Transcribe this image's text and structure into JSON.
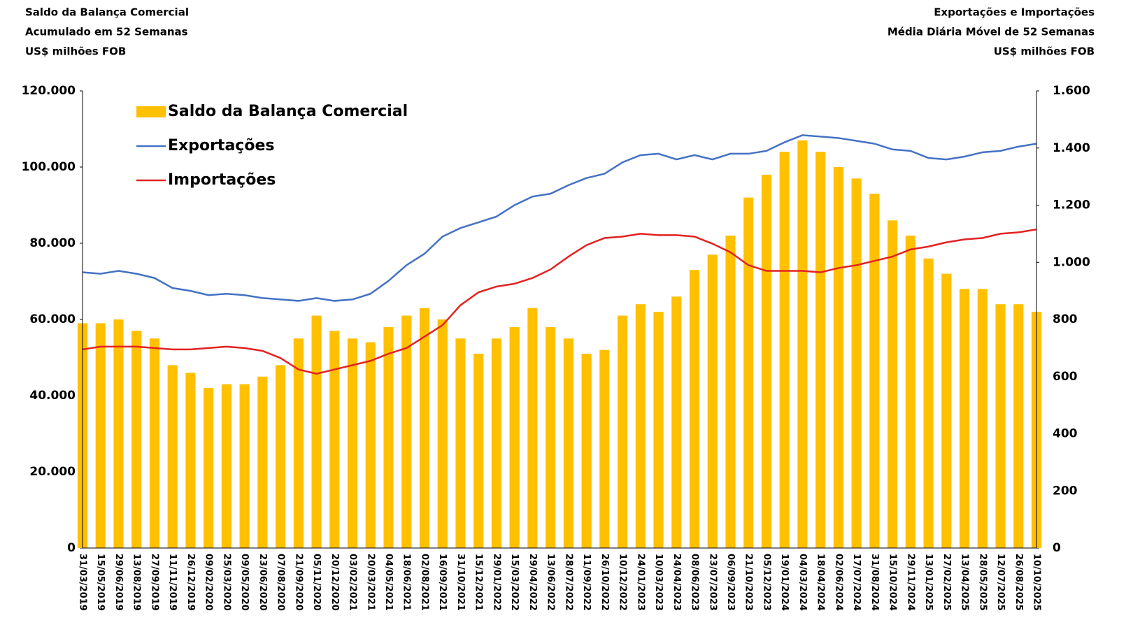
{
  "chart_data": {
    "type": "bar_line",
    "title_left": [
      "Saldo da Balança Comercial",
      "Acumulado em 52 Semanas",
      "US$ milhões FOB"
    ],
    "title_right": [
      "Exportações e Importações",
      "Média Diária Móvel de 52 Semanas",
      "US$ milhões FOB"
    ],
    "categories": [
      "31/03/2019",
      "15/05/2019",
      "29/06/2019",
      "13/08/2019",
      "27/09/2019",
      "11/11/2019",
      "26/12/2019",
      "09/02/2020",
      "25/03/2020",
      "09/05/2020",
      "23/06/2020",
      "07/08/2020",
      "21/09/2020",
      "05/11/2020",
      "20/12/2020",
      "03/02/2021",
      "20/03/2021",
      "04/05/2021",
      "18/06/2021",
      "02/08/2021",
      "16/09/2021",
      "31/10/2021",
      "15/12/2021",
      "29/01/2022",
      "15/03/2022",
      "29/04/2022",
      "13/06/2022",
      "28/07/2022",
      "11/09/2022",
      "26/10/2022",
      "10/12/2022",
      "24/01/2023",
      "10/03/2023",
      "24/04/2023",
      "08/06/2023",
      "23/07/2023",
      "06/09/2023",
      "21/10/2023",
      "05/12/2023",
      "19/01/2024",
      "04/03/2024",
      "18/04/2024",
      "02/06/2024",
      "17/07/2024",
      "31/08/2024",
      "15/10/2024",
      "29/11/2024",
      "13/01/2025",
      "27/02/2025",
      "13/04/2025",
      "28/05/2025",
      "12/07/2025",
      "26/08/2025",
      "10/10/2025"
    ],
    "series": [
      {
        "name": "Saldo da Balança Comercial",
        "color": "#ffc000",
        "kind": "bar",
        "axis": "y",
        "values": [
          59000,
          59000,
          60000,
          57000,
          55000,
          48000,
          46000,
          42000,
          43000,
          43000,
          45000,
          48000,
          55000,
          61000,
          57000,
          55000,
          54000,
          58000,
          61000,
          63000,
          60000,
          55000,
          51000,
          55000,
          58000,
          63000,
          58000,
          55000,
          51000,
          52000,
          61000,
          64000,
          62000,
          66000,
          73000,
          77000,
          82000,
          92000,
          98000,
          104000,
          107000,
          104000,
          100000,
          97000,
          93000,
          86000,
          82000,
          76000,
          72000,
          68000,
          68000,
          64000,
          64000,
          62000
        ]
      },
      {
        "name": "Exportações",
        "color": "#4472c4",
        "kind": "line",
        "axis": "y2",
        "values": [
          965,
          960,
          970,
          960,
          945,
          910,
          900,
          885,
          890,
          885,
          875,
          870,
          865,
          875,
          865,
          870,
          890,
          935,
          990,
          1030,
          1090,
          1120,
          1140,
          1160,
          1200,
          1230,
          1240,
          1270,
          1295,
          1310,
          1350,
          1375,
          1380,
          1360,
          1375,
          1360,
          1380,
          1380,
          1390,
          1420,
          1445,
          1440,
          1435,
          1425,
          1415,
          1395,
          1390,
          1365,
          1360,
          1370,
          1385,
          1390,
          1405,
          1415
        ]
      },
      {
        "name": "Importações",
        "color": "#e32222",
        "kind": "line",
        "axis": "y2",
        "values": [
          695,
          705,
          705,
          705,
          700,
          695,
          695,
          700,
          705,
          700,
          690,
          665,
          625,
          610,
          625,
          640,
          655,
          680,
          700,
          740,
          780,
          850,
          895,
          915,
          925,
          945,
          975,
          1020,
          1060,
          1085,
          1090,
          1100,
          1095,
          1095,
          1090,
          1065,
          1035,
          990,
          970,
          970,
          970,
          965,
          980,
          990,
          1005,
          1020,
          1045,
          1055,
          1070,
          1080,
          1085,
          1100,
          1105,
          1115
        ]
      }
    ],
    "ylim": [
      0,
      120000
    ],
    "yticks": [
      0,
      {
        "value": 20000,
        "label": "20.000"
      },
      {
        "value": 40000,
        "label": "40.000"
      },
      {
        "value": 60000,
        "label": "60.000"
      },
      {
        "value": 80000,
        "label": "80.000"
      },
      {
        "value": 100000,
        "label": "100.000"
      },
      {
        "value": 120000,
        "label": "120.000"
      }
    ],
    "y2lim": [
      0,
      1600
    ],
    "y2ticks": [
      0,
      200,
      400,
      600,
      800,
      {
        "value": 1000,
        "label": "1.000"
      },
      {
        "value": 1200,
        "label": "1.200"
      },
      {
        "value": 1400,
        "label": "1.400"
      },
      {
        "value": 1600,
        "label": "1.600"
      }
    ],
    "legend": "top-left",
    "grid": false
  }
}
